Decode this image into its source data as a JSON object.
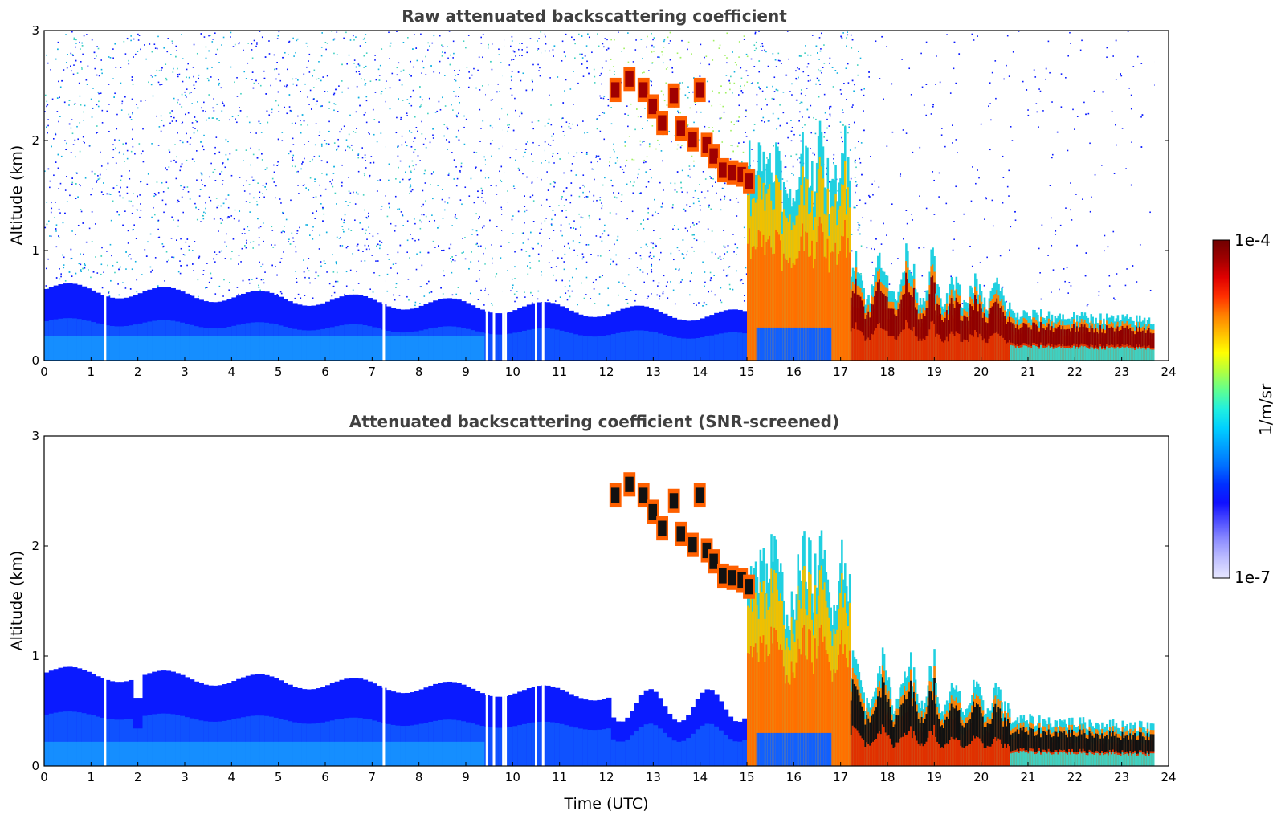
{
  "chart_data": [
    {
      "type": "heatmap",
      "title": "Raw attenuated backscattering coefficient",
      "xlabel": "",
      "ylabel": "Altitude (km)",
      "xlim": [
        0,
        24
      ],
      "ylim": [
        0,
        3
      ],
      "xticks": [
        "0",
        "1",
        "2",
        "3",
        "4",
        "5",
        "6",
        "7",
        "8",
        "9",
        "10",
        "11",
        "12",
        "13",
        "14",
        "15",
        "16",
        "17",
        "18",
        "19",
        "20",
        "21",
        "22",
        "23",
        "24"
      ],
      "yticks": [
        "0",
        "1",
        "2",
        "3"
      ],
      "data_gaps_utc": [
        1.3,
        7.25,
        9.45,
        9.6,
        9.8,
        9.85,
        10.5,
        10.65
      ],
      "end_of_data_utc": 23.7,
      "features": [
        {
          "name": "boundary layer aerosol",
          "from_utc": 0,
          "to_utc": 15,
          "top_km": 0.6,
          "level": "low"
        },
        {
          "name": "descending cloud layer",
          "from_utc": 12,
          "to_utc": 15,
          "top_km": 2.6,
          "bottom_km": 1.5,
          "level": "very high"
        },
        {
          "name": "precipitation / thick cloud",
          "from_utc": 15,
          "to_utc": 17.2,
          "top_km": 2.0,
          "level": "high"
        },
        {
          "name": "low cloud layer",
          "from_utc": 17.2,
          "to_utc": 23.7,
          "top_km": 0.5,
          "level": "high"
        }
      ]
    },
    {
      "type": "heatmap",
      "title": "Attenuated backscattering coefficient (SNR-screened)",
      "xlabel": "Time (UTC)",
      "ylabel": "Altitude (km)",
      "xlim": [
        0,
        24
      ],
      "ylim": [
        0,
        3
      ],
      "xticks": [
        "0",
        "1",
        "2",
        "3",
        "4",
        "5",
        "6",
        "7",
        "8",
        "9",
        "10",
        "11",
        "12",
        "13",
        "14",
        "15",
        "16",
        "17",
        "18",
        "19",
        "20",
        "21",
        "22",
        "23",
        "24"
      ],
      "yticks": [
        "0",
        "1",
        "2",
        "3"
      ],
      "data_gaps_utc": [
        1.3,
        7.25,
        9.45,
        9.6,
        9.8,
        9.85,
        10.5,
        10.65
      ],
      "end_of_data_utc": 23.7,
      "features": [
        {
          "name": "boundary layer aerosol",
          "from_utc": 0,
          "to_utc": 15,
          "top_km": 0.85,
          "level": "low"
        },
        {
          "name": "descending cloud layer",
          "from_utc": 12,
          "to_utc": 15,
          "top_km": 2.6,
          "bottom_km": 1.5,
          "level": "saturated"
        },
        {
          "name": "precipitation / thick cloud",
          "from_utc": 15,
          "to_utc": 17.2,
          "top_km": 2.0,
          "level": "high"
        },
        {
          "name": "low cloud layer",
          "from_utc": 17.2,
          "to_utc": 23.7,
          "top_km": 0.55,
          "level": "saturated"
        }
      ]
    }
  ],
  "colorbar": {
    "label": "1/m/sr",
    "max_label": "1e-4",
    "min_label": "1e-7",
    "colors": [
      "#e8e8ff",
      "#c0c0ff",
      "#9090ff",
      "#5050ff",
      "#1010ff",
      "#0030ff",
      "#0070ff",
      "#00a0ff",
      "#00d0ff",
      "#20f0e0",
      "#60ff90",
      "#b0ff40",
      "#ffff00",
      "#ffc000",
      "#ff8000",
      "#ff3000",
      "#e00000",
      "#a00000",
      "#700000"
    ]
  },
  "colors": {
    "blue_dark": "#0a1aff",
    "blue_mid": "#1060ff",
    "blue_light": "#18a8ff",
    "saturated": "#111111"
  }
}
